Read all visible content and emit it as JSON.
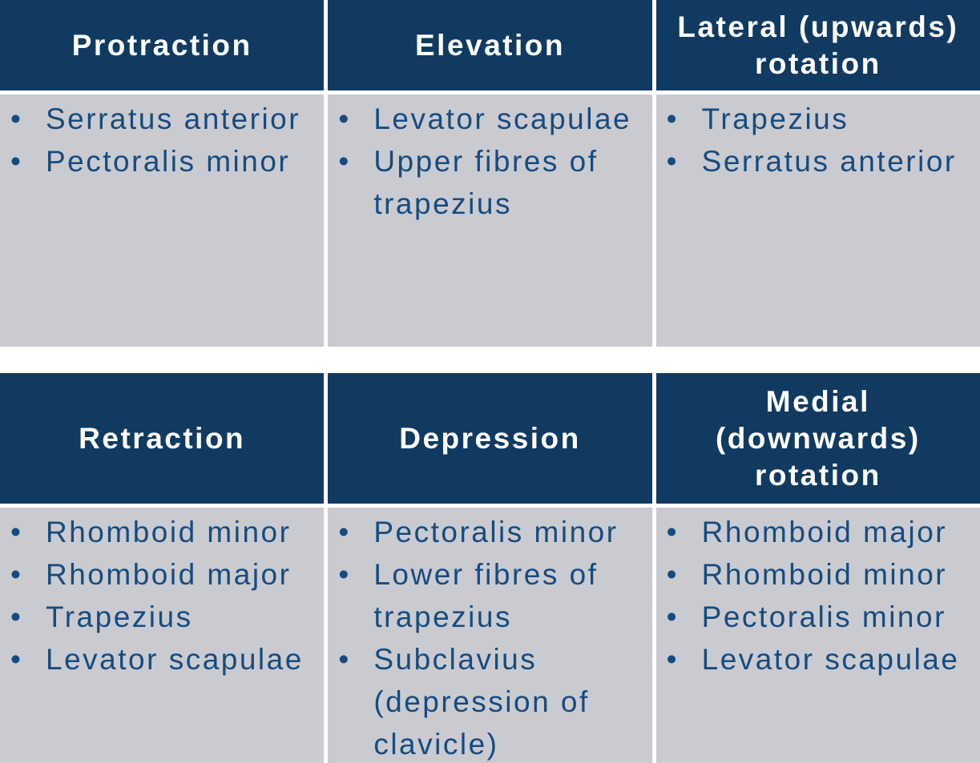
{
  "colors": {
    "page_bg": "#ffffff",
    "header_bg": "#113a60",
    "header_text": "#ffffff",
    "body_bg": "#c9cbd1",
    "body_text": "#174b7e"
  },
  "tables": [
    {
      "columns": [
        {
          "header": "Protraction",
          "header_lines": [
            "Protraction"
          ],
          "items": [
            "Serratus anterior",
            "Pectoralis minor"
          ]
        },
        {
          "header": "Elevation",
          "header_lines": [
            "Elevation"
          ],
          "items": [
            "Levator scapulae",
            "Upper fibres of trapezius"
          ]
        },
        {
          "header": "Lateral (upwards) rotation",
          "header_lines": [
            "Lateral (upwards)",
            "rotation"
          ],
          "items": [
            "Trapezius",
            "Serratus anterior"
          ]
        }
      ]
    },
    {
      "columns": [
        {
          "header": "Retraction",
          "header_lines": [
            "Retraction"
          ],
          "items": [
            "Rhomboid minor",
            "Rhomboid major",
            "Trapezius",
            "Levator scapulae"
          ]
        },
        {
          "header": "Depression",
          "header_lines": [
            "Depression"
          ],
          "items": [
            "Pectoralis minor",
            "Lower fibres of trapezius",
            "Subclavius (depression of clavicle)"
          ]
        },
        {
          "header": "Medial (downwards) rotation",
          "header_lines": [
            "Medial",
            "(downwards)",
            "rotation"
          ],
          "items": [
            "Rhomboid major",
            "Rhomboid minor",
            "Pectoralis minor",
            "Levator scapulae"
          ]
        }
      ]
    }
  ]
}
